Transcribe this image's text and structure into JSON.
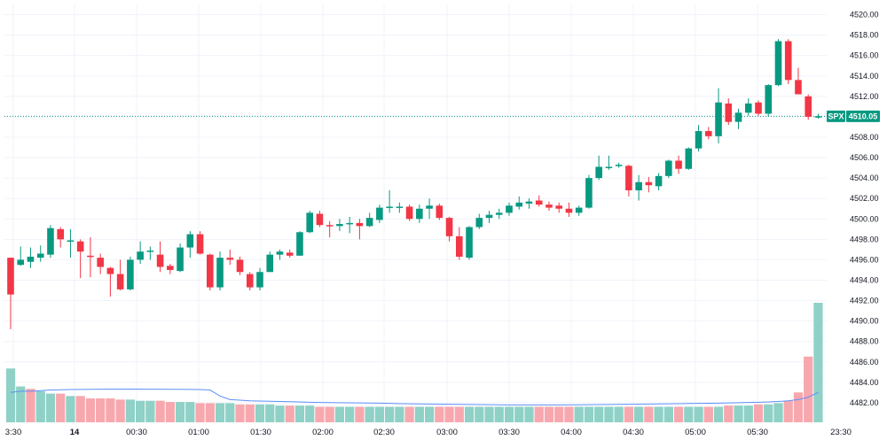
{
  "chart_data": {
    "type": "candlestick",
    "symbol": "SPX",
    "last_price": "4510.05",
    "ylim": [
      4480,
      4521
    ],
    "y_ticks": [
      "4482.00",
      "4484.00",
      "4486.00",
      "4488.00",
      "4490.00",
      "4492.00",
      "4494.00",
      "4496.00",
      "4498.00",
      "4500.00",
      "4502.00",
      "4504.00",
      "4506.00",
      "4508.00",
      "4510.00",
      "4512.00",
      "4514.00",
      "4516.00",
      "4518.00",
      "4520.00"
    ],
    "x_labels": [
      "3:30",
      "14",
      "00:30",
      "01:00",
      "01:30",
      "02:00",
      "02:30",
      "03:00",
      "03:30",
      "04:00",
      "04:30",
      "05:00",
      "05:30",
      "23:30"
    ],
    "candles": [
      [
        4496.2,
        4496.2,
        4489.2,
        4492.6
      ],
      [
        4495.5,
        4497.3,
        4495.4,
        4496.0
      ],
      [
        4495.8,
        4497.2,
        4495.2,
        4496.3
      ],
      [
        4496.2,
        4497.4,
        4495.8,
        4496.6
      ],
      [
        4496.5,
        4499.4,
        4496.2,
        4499.1
      ],
      [
        4499.0,
        4499.2,
        4497.2,
        4498.0
      ],
      [
        4497.8,
        4499.0,
        4496.2,
        4497.9
      ],
      [
        4497.8,
        4498.0,
        4494.2,
        4496.8
      ],
      [
        4496.4,
        4498.2,
        4494.3,
        4496.3
      ],
      [
        4496.2,
        4496.6,
        4494.6,
        4495.3
      ],
      [
        4495.2,
        4495.3,
        4492.4,
        4494.6
      ],
      [
        4494.6,
        4496.0,
        4493.0,
        4493.1
      ],
      [
        4493.1,
        4496.3,
        4493.0,
        4496.0
      ],
      [
        4496.0,
        4497.8,
        4495.6,
        4496.8
      ],
      [
        4496.8,
        4497.3,
        4496.0,
        4496.9
      ],
      [
        4496.5,
        4497.8,
        4494.8,
        4495.3
      ],
      [
        4495.4,
        4495.6,
        4494.6,
        4495.0
      ],
      [
        4494.9,
        4497.6,
        4494.8,
        4497.2
      ],
      [
        4497.2,
        4498.8,
        4496.2,
        4498.5
      ],
      [
        4498.5,
        4498.8,
        4496.5,
        4496.6
      ],
      [
        4496.5,
        4496.6,
        4493.0,
        4493.3
      ],
      [
        4493.3,
        4496.8,
        4493.0,
        4496.2
      ],
      [
        4496.2,
        4497.0,
        4495.5,
        4496.0
      ],
      [
        4496.0,
        4496.3,
        4494.5,
        4494.8
      ],
      [
        4494.6,
        4494.8,
        4493.0,
        4493.3
      ],
      [
        4493.3,
        4495.2,
        4493.0,
        4494.8
      ],
      [
        4494.8,
        4496.8,
        4494.8,
        4496.5
      ],
      [
        4496.5,
        4497.0,
        4496.0,
        4496.8
      ],
      [
        4496.7,
        4497.0,
        4496.2,
        4496.4
      ],
      [
        4496.4,
        4498.8,
        4496.4,
        4498.7
      ],
      [
        4498.7,
        4500.8,
        4498.6,
        4500.6
      ],
      [
        4500.5,
        4500.8,
        4499.2,
        4499.4
      ],
      [
        4499.4,
        4499.8,
        4498.2,
        4499.3
      ],
      [
        4499.3,
        4500.0,
        4498.8,
        4499.5
      ],
      [
        4499.5,
        4500.2,
        4498.6,
        4499.6
      ],
      [
        4499.6,
        4500.0,
        4498.0,
        4499.3
      ],
      [
        4499.3,
        4500.6,
        4499.2,
        4500.1
      ],
      [
        4499.9,
        4501.4,
        4499.6,
        4501.1
      ],
      [
        4501.1,
        4502.8,
        4500.6,
        4501.2
      ],
      [
        4501.1,
        4501.6,
        4500.6,
        4501.2
      ],
      [
        4501.2,
        4501.4,
        4499.8,
        4500.0
      ],
      [
        4500.0,
        4501.4,
        4499.6,
        4501.0
      ],
      [
        4501.0,
        4502.0,
        4500.0,
        4501.3
      ],
      [
        4501.3,
        4501.5,
        4499.9,
        4500.1
      ],
      [
        4500.1,
        4500.2,
        4497.8,
        4498.3
      ],
      [
        4498.3,
        4499.2,
        4496.0,
        4496.3
      ],
      [
        4496.2,
        4499.3,
        4496.0,
        4499.2
      ],
      [
        4499.2,
        4500.5,
        4499.0,
        4500.1
      ],
      [
        4500.1,
        4500.8,
        4499.6,
        4500.4
      ],
      [
        4500.4,
        4501.0,
        4500.0,
        4500.6
      ],
      [
        4500.6,
        4501.6,
        4500.3,
        4501.3
      ],
      [
        4501.2,
        4502.2,
        4500.9,
        4501.6
      ],
      [
        4501.5,
        4502.0,
        4501.0,
        4501.7
      ],
      [
        4501.8,
        4502.3,
        4501.2,
        4501.4
      ],
      [
        4501.4,
        4501.7,
        4500.8,
        4501.1
      ],
      [
        4501.3,
        4501.6,
        4500.6,
        4501.0
      ],
      [
        4501.0,
        4501.6,
        4500.2,
        4500.6
      ],
      [
        4500.6,
        4501.3,
        4500.3,
        4501.1
      ],
      [
        4501.1,
        4504.3,
        4501.0,
        4504.0
      ],
      [
        4504.0,
        4506.2,
        4503.8,
        4505.1
      ],
      [
        4505.0,
        4506.2,
        4504.8,
        4505.1
      ],
      [
        4505.2,
        4505.5,
        4505.0,
        4505.3
      ],
      [
        4505.2,
        4505.3,
        4502.2,
        4502.8
      ],
      [
        4502.8,
        4504.3,
        4501.8,
        4503.6
      ],
      [
        4503.6,
        4504.1,
        4502.6,
        4503.3
      ],
      [
        4503.2,
        4504.5,
        4502.8,
        4504.2
      ],
      [
        4504.2,
        4505.8,
        4504.0,
        4505.7
      ],
      [
        4505.7,
        4506.2,
        4504.4,
        4504.9
      ],
      [
        4504.9,
        4507.0,
        4504.8,
        4506.9
      ],
      [
        4506.9,
        4509.2,
        4506.6,
        4508.6
      ],
      [
        4508.6,
        4509.0,
        4507.8,
        4508.1
      ],
      [
        4508.1,
        4512.8,
        4507.4,
        4511.4
      ],
      [
        4511.3,
        4511.8,
        4509.2,
        4509.5
      ],
      [
        4509.5,
        4510.8,
        4508.8,
        4510.4
      ],
      [
        4510.4,
        4511.8,
        4510.1,
        4511.3
      ],
      [
        4511.4,
        4511.6,
        4510.1,
        4510.3
      ],
      [
        4510.3,
        4513.2,
        4510.0,
        4513.1
      ],
      [
        4513.1,
        4517.6,
        4513.0,
        4517.4
      ],
      [
        4517.4,
        4517.6,
        4513.2,
        4513.6
      ],
      [
        4513.6,
        4514.8,
        4512.3,
        4512.2
      ],
      [
        4512.0,
        4512.2,
        4509.7,
        4510.0
      ],
      [
        4510.0,
        4510.3,
        4509.8,
        4510.05
      ]
    ],
    "volume": [
      [
        0.45,
        "up"
      ],
      [
        0.3,
        "up"
      ],
      [
        0.28,
        "down"
      ],
      [
        0.26,
        "up"
      ],
      [
        0.24,
        "up"
      ],
      [
        0.24,
        "down"
      ],
      [
        0.22,
        "up"
      ],
      [
        0.22,
        "down"
      ],
      [
        0.2,
        "down"
      ],
      [
        0.2,
        "down"
      ],
      [
        0.2,
        "down"
      ],
      [
        0.19,
        "down"
      ],
      [
        0.19,
        "up"
      ],
      [
        0.18,
        "up"
      ],
      [
        0.18,
        "up"
      ],
      [
        0.18,
        "down"
      ],
      [
        0.17,
        "down"
      ],
      [
        0.17,
        "up"
      ],
      [
        0.17,
        "up"
      ],
      [
        0.16,
        "down"
      ],
      [
        0.16,
        "down"
      ],
      [
        0.16,
        "up"
      ],
      [
        0.16,
        "up"
      ],
      [
        0.15,
        "down"
      ],
      [
        0.15,
        "down"
      ],
      [
        0.15,
        "up"
      ],
      [
        0.15,
        "up"
      ],
      [
        0.14,
        "up"
      ],
      [
        0.14,
        "down"
      ],
      [
        0.14,
        "up"
      ],
      [
        0.14,
        "up"
      ],
      [
        0.13,
        "down"
      ],
      [
        0.13,
        "down"
      ],
      [
        0.13,
        "up"
      ],
      [
        0.13,
        "up"
      ],
      [
        0.13,
        "down"
      ],
      [
        0.13,
        "up"
      ],
      [
        0.13,
        "up"
      ],
      [
        0.13,
        "up"
      ],
      [
        0.13,
        "up"
      ],
      [
        0.13,
        "down"
      ],
      [
        0.13,
        "up"
      ],
      [
        0.13,
        "up"
      ],
      [
        0.13,
        "down"
      ],
      [
        0.13,
        "down"
      ],
      [
        0.13,
        "down"
      ],
      [
        0.13,
        "up"
      ],
      [
        0.13,
        "up"
      ],
      [
        0.13,
        "up"
      ],
      [
        0.13,
        "up"
      ],
      [
        0.13,
        "up"
      ],
      [
        0.13,
        "up"
      ],
      [
        0.13,
        "up"
      ],
      [
        0.13,
        "down"
      ],
      [
        0.13,
        "down"
      ],
      [
        0.13,
        "down"
      ],
      [
        0.13,
        "down"
      ],
      [
        0.13,
        "up"
      ],
      [
        0.13,
        "up"
      ],
      [
        0.13,
        "up"
      ],
      [
        0.13,
        "up"
      ],
      [
        0.13,
        "up"
      ],
      [
        0.13,
        "down"
      ],
      [
        0.13,
        "up"
      ],
      [
        0.13,
        "down"
      ],
      [
        0.13,
        "up"
      ],
      [
        0.13,
        "up"
      ],
      [
        0.13,
        "down"
      ],
      [
        0.13,
        "up"
      ],
      [
        0.13,
        "up"
      ],
      [
        0.13,
        "down"
      ],
      [
        0.13,
        "up"
      ],
      [
        0.14,
        "down"
      ],
      [
        0.14,
        "up"
      ],
      [
        0.14,
        "up"
      ],
      [
        0.15,
        "down"
      ],
      [
        0.15,
        "up"
      ],
      [
        0.16,
        "up"
      ],
      [
        0.18,
        "down"
      ],
      [
        0.25,
        "down"
      ],
      [
        0.55,
        "down"
      ],
      [
        1.0,
        "up"
      ]
    ],
    "volume_ma": [
      0.25,
      0.26,
      0.26,
      0.265,
      0.27,
      0.272,
      0.274,
      0.275,
      0.276,
      0.277,
      0.278,
      0.278,
      0.278,
      0.278,
      0.277,
      0.277,
      0.276,
      0.276,
      0.275,
      0.274,
      0.27,
      0.22,
      0.19,
      0.185,
      0.18,
      0.178,
      0.176,
      0.174,
      0.172,
      0.17,
      0.168,
      0.166,
      0.165,
      0.164,
      0.163,
      0.162,
      0.161,
      0.16,
      0.158,
      0.156,
      0.155,
      0.154,
      0.153,
      0.152,
      0.151,
      0.15,
      0.149,
      0.148,
      0.147,
      0.146,
      0.145,
      0.145,
      0.145,
      0.145,
      0.145,
      0.145,
      0.146,
      0.146,
      0.147,
      0.148,
      0.149,
      0.15,
      0.151,
      0.152,
      0.153,
      0.154,
      0.155,
      0.156,
      0.157,
      0.158,
      0.159,
      0.16,
      0.162,
      0.164,
      0.166,
      0.168,
      0.17,
      0.174,
      0.18,
      0.19,
      0.21,
      0.25
    ],
    "colors": {
      "up": "#089981",
      "down": "#f23645",
      "up_vol": "#8fd1c6",
      "down_vol": "#f7a8ae",
      "grid": "#f0f3fa",
      "ma": "#5b8ff9",
      "price_line": "#089981",
      "text": "#131722"
    }
  }
}
